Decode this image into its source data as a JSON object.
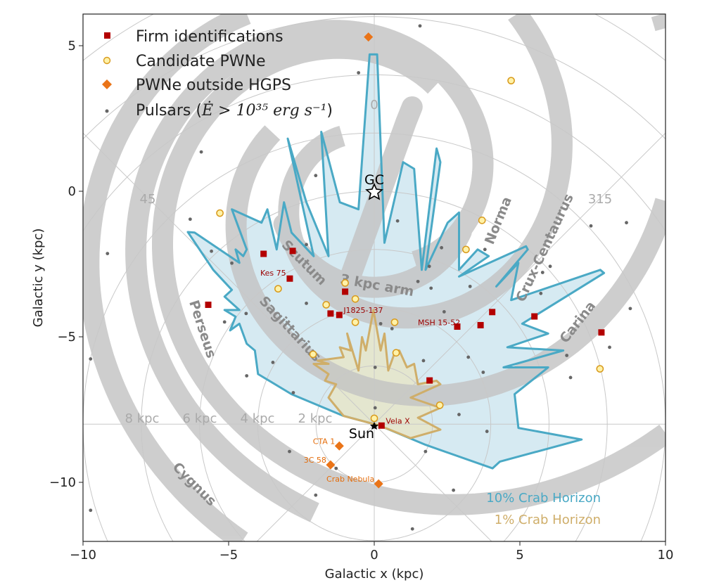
{
  "chart_data": {
    "type": "scatter",
    "xlabel": "Galactic x (kpc)",
    "ylabel": "Galactic y (kpc)",
    "xlim": [
      -10,
      10
    ],
    "ylim": [
      -12,
      6.1
    ],
    "xticks": [
      "−10",
      "−5",
      "0",
      "5",
      "10"
    ],
    "xtick_values": [
      -10,
      -5,
      0,
      5,
      10
    ],
    "yticks": [
      "5",
      "0",
      "−5",
      "−10"
    ],
    "ytick_values": [
      5,
      0,
      -5,
      -10
    ],
    "grid": "polar grid centered on the Sun",
    "legend_position": "top-left",
    "legend": {
      "firm": "Firm identifications",
      "candidate": "Candidate PWNe",
      "outside": "PWNe outside HGPS",
      "pulsars_prefix": "Pulsars (",
      "pulsars_math": "Ė > 10³⁵ erg s⁻¹",
      "pulsars_suffix": ")"
    },
    "colors": {
      "firm": "#b30000",
      "candidate_fill": "#fff2a8",
      "candidate_edge": "#d89a1c",
      "outside": "#ea7418",
      "pulsar": "#666666",
      "arm": "#c4c4c4",
      "horizon10": "#4aa9c5",
      "horizon1": "#cfae6a"
    },
    "markers": {
      "gc": {
        "label": "GC",
        "x": 0,
        "y": 0
      },
      "sun": {
        "label": "Sun",
        "x": 0,
        "y": -8
      }
    },
    "grid_labels": {
      "distances": [
        "8 kpc",
        "6 kpc",
        "4 kpc",
        "2 kpc"
      ],
      "angles": [
        "0",
        "45",
        "315"
      ]
    },
    "arms": [
      "Perseus",
      "Scutum",
      "Sagittarius",
      "3 kpc arm",
      "Norma",
      "Crux-Centaurus",
      "Carina",
      "Cygnus"
    ],
    "horizon_labels": [
      "10% Crab Horizon",
      "1% Crab Horizon"
    ],
    "firm": [
      {
        "x": -3.8,
        "y": -2.15,
        "label": ""
      },
      {
        "x": -2.8,
        "y": -2.05,
        "label": ""
      },
      {
        "x": -2.9,
        "y": -3.0,
        "label": "Kes 75"
      },
      {
        "x": -1.0,
        "y": -3.45,
        "label": ""
      },
      {
        "x": -1.5,
        "y": -4.2,
        "label": ""
      },
      {
        "x": -1.2,
        "y": -4.25,
        "label": "J1825-137"
      },
      {
        "x": -5.7,
        "y": -3.9,
        "label": ""
      },
      {
        "x": 2.85,
        "y": -4.65,
        "label": "MSH 15-52"
      },
      {
        "x": 3.65,
        "y": -4.6,
        "label": ""
      },
      {
        "x": 4.05,
        "y": -4.15,
        "label": ""
      },
      {
        "x": 5.5,
        "y": -4.3,
        "label": ""
      },
      {
        "x": 7.8,
        "y": -4.85,
        "label": ""
      },
      {
        "x": 1.9,
        "y": -6.5,
        "label": ""
      },
      {
        "x": 0.25,
        "y": -8.05,
        "label": "Vela X"
      }
    ],
    "candidates": [
      {
        "x": -5.3,
        "y": -0.75
      },
      {
        "x": -3.3,
        "y": -3.35
      },
      {
        "x": -1.65,
        "y": -3.9
      },
      {
        "x": -1.0,
        "y": -3.15
      },
      {
        "x": -0.65,
        "y": -3.7
      },
      {
        "x": -0.65,
        "y": -4.5
      },
      {
        "x": 0.7,
        "y": -4.5
      },
      {
        "x": 0.75,
        "y": -5.55
      },
      {
        "x": -2.1,
        "y": -5.6
      },
      {
        "x": 2.25,
        "y": -7.35
      },
      {
        "x": 0.0,
        "y": -7.8
      },
      {
        "x": 3.7,
        "y": -1.0
      },
      {
        "x": 3.15,
        "y": -2.0
      },
      {
        "x": 4.7,
        "y": 3.8
      },
      {
        "x": 7.75,
        "y": -6.1
      }
    ],
    "outside": [
      {
        "x": -0.2,
        "y": 5.3,
        "label": ""
      },
      {
        "x": -1.2,
        "y": -8.75,
        "label": "CTA 1"
      },
      {
        "x": -1.5,
        "y": -9.4,
        "label": "3C 58"
      },
      {
        "x": 0.15,
        "y": -10.05,
        "label": "Crab Nebula"
      }
    ],
    "pulsars": [
      [
        1.57,
        5.68
      ],
      [
        -0.54,
        4.07
      ],
      [
        -2.01,
        0.54
      ],
      [
        -5.94,
        1.35
      ],
      [
        -6.32,
        -0.96
      ],
      [
        -9.16,
        -2.14
      ],
      [
        -5.59,
        -2.06
      ],
      [
        -4.89,
        -2.47
      ],
      [
        -2.33,
        -1.83
      ],
      [
        -2.33,
        -3.85
      ],
      [
        0.8,
        -1.02
      ],
      [
        2.31,
        -1.94
      ],
      [
        1.89,
        -2.58
      ],
      [
        1.5,
        -3.1
      ],
      [
        1.95,
        -3.33
      ],
      [
        3.29,
        -3.27
      ],
      [
        3.8,
        -2.0
      ],
      [
        6.04,
        -2.58
      ],
      [
        5.78,
        -2.79
      ],
      [
        5.72,
        -3.51
      ],
      [
        7.44,
        -1.19
      ],
      [
        8.66,
        -1.08
      ],
      [
        8.79,
        -4.03
      ],
      [
        8.08,
        -5.36
      ],
      [
        6.61,
        -5.64
      ],
      [
        6.74,
        -6.4
      ],
      [
        3.87,
        -8.25
      ],
      [
        2.91,
        -7.67
      ],
      [
        3.23,
        -5.7
      ],
      [
        3.74,
        -6.22
      ],
      [
        1.69,
        -5.82
      ],
      [
        0.03,
        -6.05
      ],
      [
        0.03,
        -7.44
      ],
      [
        0.61,
        -4.72
      ],
      [
        0.22,
        -4.55
      ],
      [
        2.4,
        -4.14
      ],
      [
        -3.48,
        -5.88
      ],
      [
        -4.38,
        -6.34
      ],
      [
        -2.78,
        -6.92
      ],
      [
        -2.91,
        -8.94
      ],
      [
        -2.01,
        -10.44
      ],
      [
        -1.31,
        -9.52
      ],
      [
        1.76,
        -8.94
      ],
      [
        2.72,
        -10.27
      ],
      [
        1.31,
        -11.6
      ],
      [
        -9.74,
        -10.96
      ],
      [
        -9.74,
        -5.76
      ],
      [
        -4.4,
        -4.2
      ],
      [
        -5.14,
        -4.49
      ]
    ],
    "horizon_10pct": [
      [
        0,
        -8
      ],
      [
        -1.05,
        -7.72
      ],
      [
        -2.84,
        -6.97
      ],
      [
        -3.99,
        -6.28
      ],
      [
        -4.1,
        -5.47
      ],
      [
        -4.38,
        -5.24
      ],
      [
        -4.63,
        -4.55
      ],
      [
        -4.95,
        -4.78
      ],
      [
        -4.76,
        -4.31
      ],
      [
        -5.14,
        -4.08
      ],
      [
        -4.63,
        -4.08
      ],
      [
        -5.14,
        -3.62
      ],
      [
        -4.89,
        -3.39
      ],
      [
        -5.53,
        -2.7
      ],
      [
        -6.4,
        -1.4
      ],
      [
        -6.17,
        -1.42
      ],
      [
        -4.63,
        -2.46
      ],
      [
        -4.76,
        -2.0
      ],
      [
        -4.5,
        -2.23
      ],
      [
        -4.38,
        -2.0
      ],
      [
        -4.89,
        -0.62
      ],
      [
        -4.38,
        -0.85
      ],
      [
        -3.87,
        -1.08
      ],
      [
        -3.67,
        -0.62
      ],
      [
        -3.35,
        -2.0
      ],
      [
        -3.1,
        -0.38
      ],
      [
        -2.84,
        -1.42
      ],
      [
        -2.08,
        -2.23
      ],
      [
        -2.97,
        1.81
      ],
      [
        -2.33,
        -0.38
      ],
      [
        -1.57,
        -2.23
      ],
      [
        -1.82,
        2.04
      ],
      [
        -1.18,
        -0.38
      ],
      [
        -0.54,
        -0.62
      ],
      [
        -0.16,
        4.7
      ],
      [
        0.1,
        4.7
      ],
      [
        0.35,
        -1.77
      ],
      [
        0.99,
        1.0
      ],
      [
        1.37,
        0.77
      ],
      [
        1.63,
        -2.7
      ],
      [
        2.14,
        1.47
      ],
      [
        2.27,
        1.0
      ],
      [
        1.76,
        -2.7
      ],
      [
        2.52,
        -1.08
      ],
      [
        2.91,
        -0.73
      ],
      [
        2.91,
        -2.7
      ],
      [
        3.55,
        -2.0
      ],
      [
        3.93,
        -2.23
      ],
      [
        2.91,
        -2.93
      ],
      [
        5.21,
        -1.89
      ],
      [
        5.27,
        -2.0
      ],
      [
        4.19,
        -3.27
      ],
      [
        4.95,
        -2.46
      ],
      [
        4.7,
        -3.74
      ],
      [
        7.76,
        -2.7
      ],
      [
        7.89,
        -2.81
      ],
      [
        5.08,
        -4.55
      ],
      [
        5.97,
        -4.89
      ],
      [
        4.57,
        -5.36
      ],
      [
        6.49,
        -5.47
      ],
      [
        4.44,
        -6.05
      ],
      [
        5.97,
        -6.05
      ],
      [
        4.82,
        -6.97
      ],
      [
        4.95,
        -8.13
      ],
      [
        7.12,
        -8.53
      ],
      [
        4.31,
        -9.29
      ],
      [
        4.06,
        -9.52
      ],
      [
        1.76,
        -8.71
      ],
      [
        0.23,
        -8.07
      ]
    ],
    "horizon_1pct": [
      [
        0,
        -8
      ],
      [
        -1.05,
        -7.72
      ],
      [
        -1.57,
        -7.09
      ],
      [
        -1.31,
        -6.63
      ],
      [
        -1.69,
        -6.51
      ],
      [
        -1.57,
        -6.28
      ],
      [
        -2.08,
        -5.93
      ],
      [
        -1.57,
        -5.93
      ],
      [
        -1.95,
        -5.82
      ],
      [
        -1.05,
        -5.7
      ],
      [
        -1.18,
        -5.36
      ],
      [
        -0.8,
        -5.47
      ],
      [
        -0.93,
        -4.89
      ],
      [
        -0.54,
        -6.16
      ],
      [
        -0.42,
        -5.01
      ],
      [
        -0.29,
        -5.47
      ],
      [
        -0.03,
        -4.08
      ],
      [
        0.22,
        -5.47
      ],
      [
        0.35,
        -4.89
      ],
      [
        0.48,
        -6.16
      ],
      [
        0.73,
        -5.47
      ],
      [
        0.86,
        -5.47
      ],
      [
        1.12,
        -6.05
      ],
      [
        1.37,
        -5.93
      ],
      [
        1.5,
        -6.63
      ],
      [
        2.14,
        -6.51
      ],
      [
        2.27,
        -6.63
      ],
      [
        1.25,
        -7.09
      ],
      [
        2.27,
        -7.44
      ],
      [
        1.5,
        -7.78
      ],
      [
        2.27,
        -8.19
      ],
      [
        1.25,
        -8.48
      ],
      [
        0.23,
        -8.07
      ]
    ]
  }
}
